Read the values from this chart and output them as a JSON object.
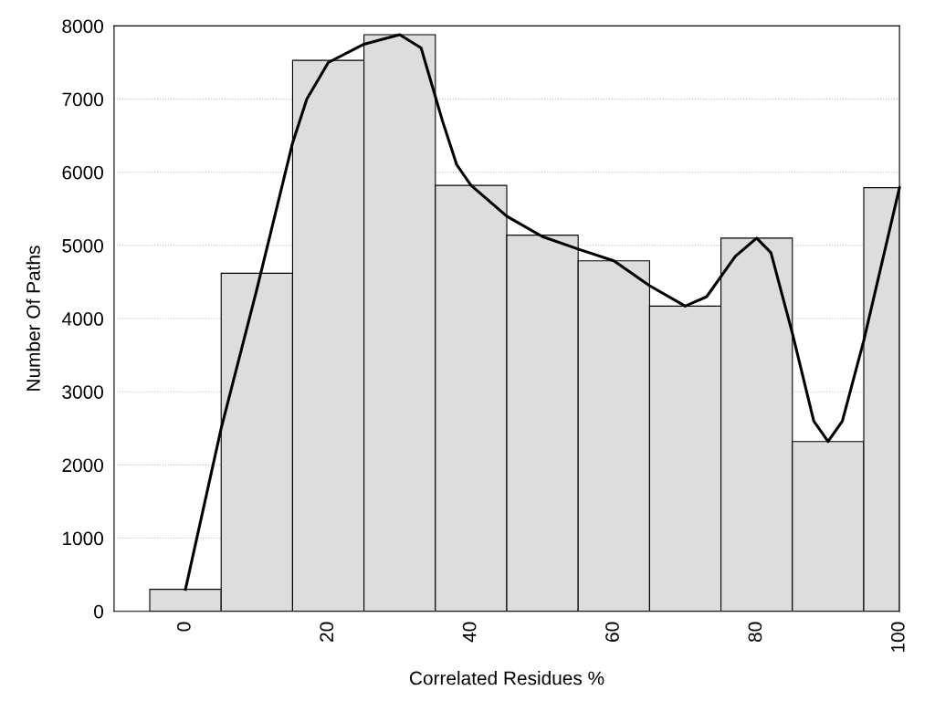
{
  "chart_data": {
    "type": "histogram",
    "xlabel": "Correlated Residues %",
    "ylabel": "Number Of Paths",
    "bins": [
      -5,
      5,
      15,
      25,
      35,
      45,
      55,
      65,
      75,
      85,
      95,
      100
    ],
    "values": [
      300,
      4620,
      7530,
      7880,
      5820,
      5140,
      4790,
      4170,
      5100,
      2320,
      5790
    ],
    "color": "#dddddd",
    "series": [
      {
        "type": "line",
        "color": "#000000",
        "x": [
          0,
          5,
          10,
          15,
          17,
          20,
          25,
          30,
          33,
          36,
          38,
          40,
          45,
          50,
          55,
          60,
          65,
          70,
          73,
          77,
          80,
          82,
          85,
          88,
          90,
          92,
          95,
          100
        ],
        "values": [
          300,
          2500,
          4400,
          6400,
          7000,
          7500,
          7750,
          7880,
          7700,
          6700,
          6100,
          5820,
          5400,
          5120,
          4950,
          4790,
          4450,
          4170,
          4300,
          4850,
          5100,
          4900,
          3800,
          2600,
          2320,
          2600,
          3700,
          5790
        ]
      }
    ],
    "xlim": [
      -10,
      100
    ],
    "xticks": [
      0,
      20,
      40,
      60,
      80,
      100
    ],
    "ylim": [
      0,
      8000
    ],
    "yticks": [
      0,
      1000,
      2000,
      3000,
      4000,
      5000,
      6000,
      7000,
      8000
    ],
    "grid": "y"
  }
}
